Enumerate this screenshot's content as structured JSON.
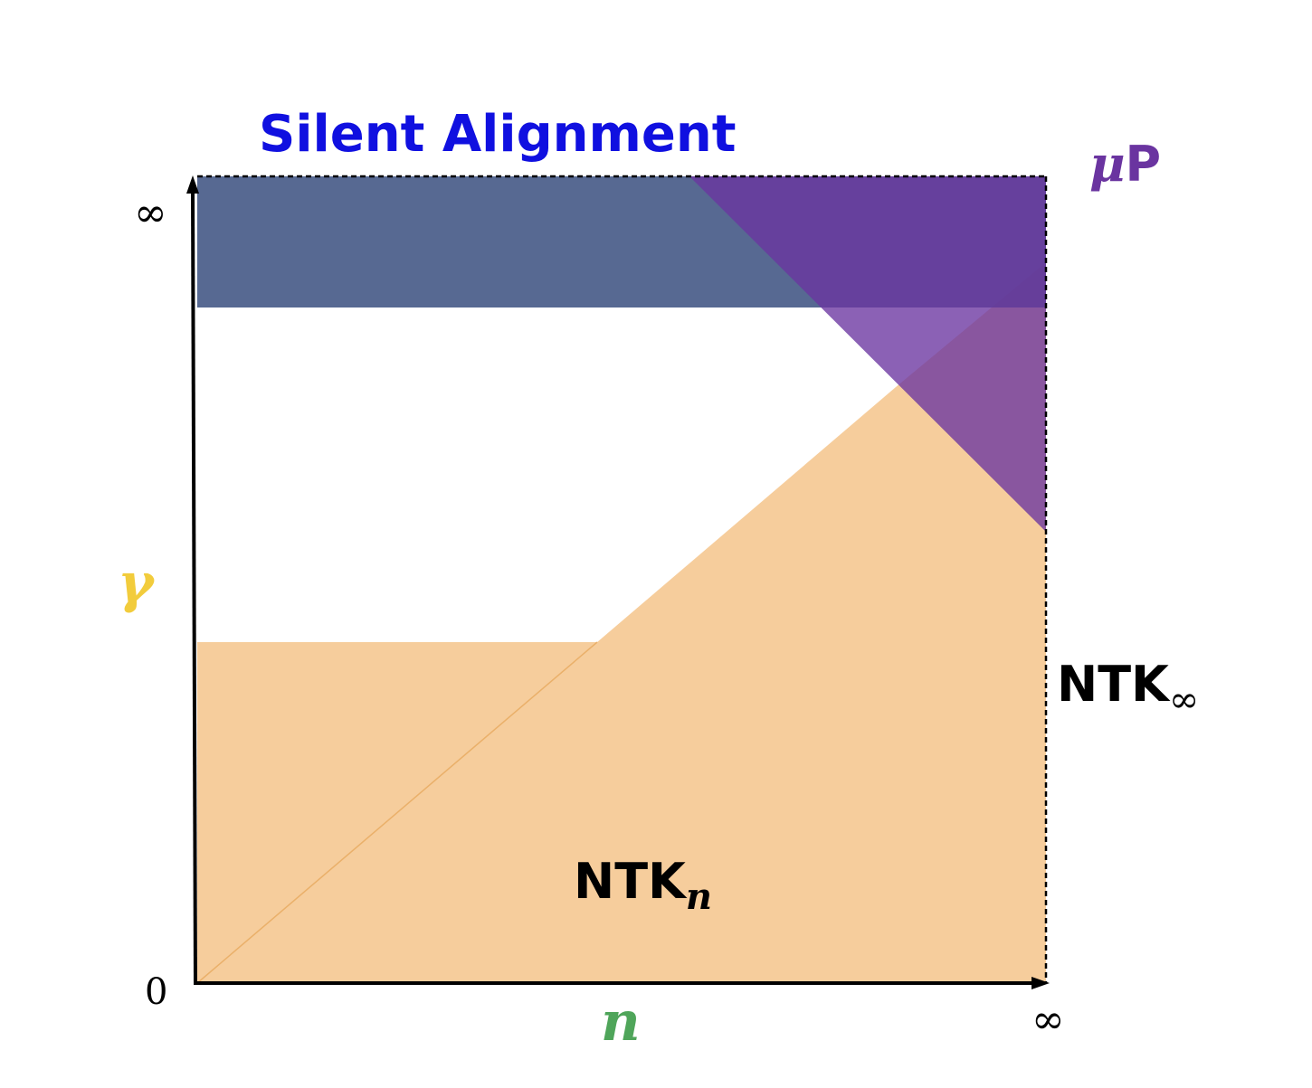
{
  "title": "Silent Alignment",
  "regions": {
    "silent_alignment": {
      "color": "#3A4F7F"
    },
    "mup": {
      "label_mu": "μ",
      "label_p": "P",
      "color": "#6A34A0"
    },
    "ntk_n": {
      "label_main": "NTK",
      "label_sub": "n",
      "color": "#F6CD9C"
    },
    "ntk_inf": {
      "label_main": "NTK",
      "label_sub": "∞"
    }
  },
  "axes": {
    "x": {
      "label": "n",
      "label_color": "#4FA55A",
      "tick_end": "∞"
    },
    "y": {
      "label": "γ",
      "label_color": "#F2CC3C",
      "tick_end": "∞"
    },
    "origin": "0"
  },
  "colors": {
    "title": "#1010E0",
    "mup_label": "#6A34A0",
    "text": "#000000"
  }
}
